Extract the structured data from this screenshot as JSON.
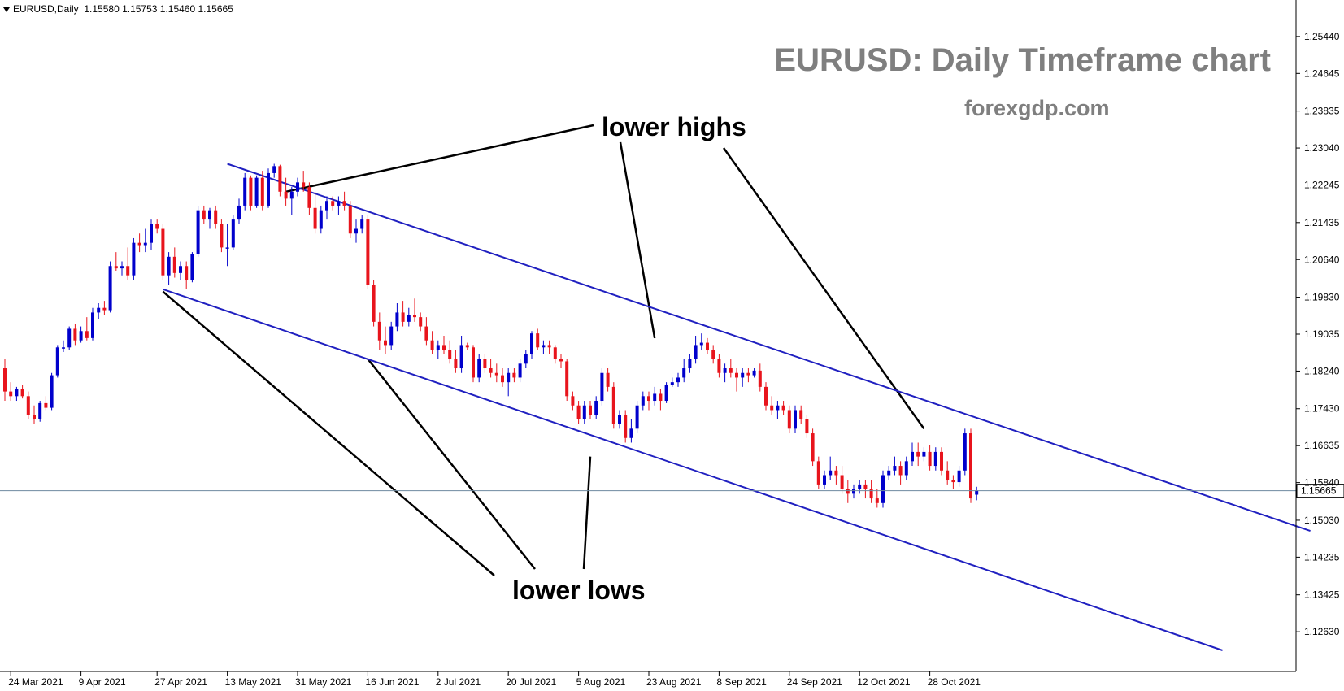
{
  "header": {
    "symbol": "EURUSD,Daily",
    "ohlc": "1.15580 1.15753 1.15460 1.15665"
  },
  "watermark": {
    "title": "EURUSD: Daily Timeframe chart",
    "site": "forexgdp.com"
  },
  "annotations": {
    "upper": "lower highs",
    "lower": "lower lows"
  },
  "colors": {
    "bull": "#0000cc",
    "bear": "#e8141c",
    "channel": "#2020c0",
    "price_line": "#6e8aa0",
    "annotation_line": "#000000"
  },
  "chart_data": {
    "type": "candlestick",
    "symbol": "EURUSD",
    "timeframe": "Daily",
    "current_price": "1.15665",
    "ylim": [
      1.1223,
      1.2584
    ],
    "y_ticks": [
      "1.25440",
      "1.24645",
      "1.23835",
      "1.23040",
      "1.22245",
      "1.21435",
      "1.20640",
      "1.19830",
      "1.19035",
      "1.18240",
      "1.17430",
      "1.16635",
      "1.15840",
      "1.15030",
      "1.14235",
      "1.13425",
      "1.12630"
    ],
    "x_ticks": [
      {
        "label": "24 Mar 2021",
        "bar": 1
      },
      {
        "label": "9 Apr 2021",
        "bar": 13
      },
      {
        "label": "27 Apr 2021",
        "bar": 26
      },
      {
        "label": "13 May 2021",
        "bar": 38
      },
      {
        "label": "31 May 2021",
        "bar": 50
      },
      {
        "label": "16 Jun 2021",
        "bar": 62
      },
      {
        "label": "2 Jul 2021",
        "bar": 74
      },
      {
        "label": "20 Jul 2021",
        "bar": 86
      },
      {
        "label": "5 Aug 2021",
        "bar": 98
      },
      {
        "label": "23 Aug 2021",
        "bar": 110
      },
      {
        "label": "8 Sep 2021",
        "bar": 122
      },
      {
        "label": "24 Sep 2021",
        "bar": 134
      },
      {
        "label": "12 Oct 2021",
        "bar": 146
      },
      {
        "label": "28 Oct 2021",
        "bar": 158
      }
    ],
    "candles": [
      [
        1.183,
        1.185,
        1.176,
        1.178
      ],
      [
        1.178,
        1.18,
        1.176,
        1.177
      ],
      [
        1.177,
        1.179,
        1.176,
        1.1785
      ],
      [
        1.1785,
        1.1795,
        1.1765,
        1.177
      ],
      [
        1.177,
        1.178,
        1.172,
        1.173
      ],
      [
        1.173,
        1.175,
        1.171,
        1.172
      ],
      [
        1.172,
        1.176,
        1.1715,
        1.1755
      ],
      [
        1.1755,
        1.177,
        1.174,
        1.1745
      ],
      [
        1.1745,
        1.182,
        1.174,
        1.1815
      ],
      [
        1.1815,
        1.188,
        1.181,
        1.1875
      ],
      [
        1.1875,
        1.189,
        1.1865,
        1.1875
      ],
      [
        1.1875,
        1.192,
        1.187,
        1.1915
      ],
      [
        1.1915,
        1.1925,
        1.188,
        1.189
      ],
      [
        1.189,
        1.192,
        1.1885,
        1.191
      ],
      [
        1.191,
        1.194,
        1.189,
        1.1895
      ],
      [
        1.1895,
        1.196,
        1.189,
        1.195
      ],
      [
        1.195,
        1.197,
        1.1935,
        1.196
      ],
      [
        1.196,
        1.1975,
        1.1945,
        1.1955
      ],
      [
        1.1955,
        1.206,
        1.195,
        1.205
      ],
      [
        1.205,
        1.208,
        1.204,
        1.2045
      ],
      [
        1.2045,
        1.206,
        1.203,
        1.205
      ],
      [
        1.205,
        1.209,
        1.202,
        1.203
      ],
      [
        1.203,
        1.211,
        1.202,
        1.21
      ],
      [
        1.21,
        1.212,
        1.208,
        1.2095
      ],
      [
        1.2095,
        1.213,
        1.208,
        1.21
      ],
      [
        1.21,
        1.215,
        1.2085,
        1.214
      ],
      [
        1.214,
        1.215,
        1.212,
        1.213
      ],
      [
        1.213,
        1.214,
        1.202,
        1.203
      ],
      [
        1.203,
        1.208,
        1.201,
        1.207
      ],
      [
        1.207,
        1.209,
        1.2025,
        1.2035
      ],
      [
        1.2035,
        1.206,
        1.202,
        1.205
      ],
      [
        1.205,
        1.206,
        1.2,
        1.202
      ],
      [
        1.202,
        1.208,
        1.2015,
        1.2075
      ],
      [
        1.2075,
        1.218,
        1.207,
        1.217
      ],
      [
        1.217,
        1.218,
        1.214,
        1.215
      ],
      [
        1.215,
        1.2175,
        1.213,
        1.217
      ],
      [
        1.217,
        1.218,
        1.213,
        1.214
      ],
      [
        1.214,
        1.215,
        1.208,
        1.209
      ],
      [
        1.209,
        1.214,
        1.205,
        1.209
      ],
      [
        1.209,
        1.216,
        1.2085,
        1.215
      ],
      [
        1.215,
        1.2195,
        1.214,
        1.218
      ],
      [
        1.218,
        1.225,
        1.217,
        1.224
      ],
      [
        1.224,
        1.2245,
        1.217,
        1.218
      ],
      [
        1.218,
        1.2245,
        1.2175,
        1.224
      ],
      [
        1.224,
        1.2255,
        1.217,
        1.218
      ],
      [
        1.218,
        1.226,
        1.2175,
        1.225
      ],
      [
        1.225,
        1.227,
        1.224,
        1.2265
      ],
      [
        1.2265,
        1.2268,
        1.22,
        1.221
      ],
      [
        1.221,
        1.224,
        1.218,
        1.2195
      ],
      [
        1.2195,
        1.222,
        1.216,
        1.221
      ],
      [
        1.221,
        1.224,
        1.22,
        1.223
      ],
      [
        1.223,
        1.2255,
        1.221,
        1.222
      ],
      [
        1.222,
        1.223,
        1.216,
        1.2175
      ],
      [
        1.2175,
        1.221,
        1.212,
        1.213
      ],
      [
        1.213,
        1.218,
        1.212,
        1.217
      ],
      [
        1.217,
        1.22,
        1.215,
        1.219
      ],
      [
        1.219,
        1.22,
        1.217,
        1.218
      ],
      [
        1.218,
        1.22,
        1.216,
        1.219
      ],
      [
        1.219,
        1.221,
        1.217,
        1.218
      ],
      [
        1.218,
        1.219,
        1.211,
        1.212
      ],
      [
        1.212,
        1.215,
        1.21,
        1.213
      ],
      [
        1.213,
        1.216,
        1.212,
        1.215
      ],
      [
        1.215,
        1.216,
        1.2,
        1.201
      ],
      [
        1.201,
        1.202,
        1.192,
        1.193
      ],
      [
        1.193,
        1.195,
        1.187,
        1.189
      ],
      [
        1.189,
        1.192,
        1.186,
        1.188
      ],
      [
        1.188,
        1.193,
        1.187,
        1.192
      ],
      [
        1.192,
        1.197,
        1.191,
        1.195
      ],
      [
        1.195,
        1.1975,
        1.192,
        1.193
      ],
      [
        1.193,
        1.196,
        1.192,
        1.1945
      ],
      [
        1.1945,
        1.198,
        1.193,
        1.194
      ],
      [
        1.194,
        1.195,
        1.191,
        1.192
      ],
      [
        1.192,
        1.194,
        1.188,
        1.189
      ],
      [
        1.189,
        1.191,
        1.186,
        1.187
      ],
      [
        1.187,
        1.189,
        1.185,
        1.188
      ],
      [
        1.188,
        1.19,
        1.186,
        1.187
      ],
      [
        1.187,
        1.189,
        1.184,
        1.185
      ],
      [
        1.185,
        1.187,
        1.182,
        1.183
      ],
      [
        1.183,
        1.19,
        1.182,
        1.188
      ],
      [
        1.188,
        1.1885,
        1.187,
        1.1875
      ],
      [
        1.1875,
        1.188,
        1.18,
        1.181
      ],
      [
        1.181,
        1.186,
        1.18,
        1.185
      ],
      [
        1.185,
        1.186,
        1.182,
        1.183
      ],
      [
        1.183,
        1.185,
        1.181,
        1.182
      ],
      [
        1.182,
        1.184,
        1.18,
        1.1815
      ],
      [
        1.1815,
        1.183,
        1.179,
        1.18
      ],
      [
        1.18,
        1.183,
        1.177,
        1.182
      ],
      [
        1.182,
        1.183,
        1.18,
        1.181
      ],
      [
        1.181,
        1.185,
        1.18,
        1.184
      ],
      [
        1.184,
        1.187,
        1.183,
        1.186
      ],
      [
        1.186,
        1.191,
        1.185,
        1.1905
      ],
      [
        1.1905,
        1.1915,
        1.187,
        1.1875
      ],
      [
        1.1875,
        1.189,
        1.186,
        1.188
      ],
      [
        1.188,
        1.189,
        1.186,
        1.1875
      ],
      [
        1.1875,
        1.188,
        1.184,
        1.185
      ],
      [
        1.185,
        1.186,
        1.183,
        1.1845
      ],
      [
        1.1845,
        1.185,
        1.176,
        1.177
      ],
      [
        1.177,
        1.178,
        1.174,
        1.175
      ],
      [
        1.175,
        1.176,
        1.171,
        1.172
      ],
      [
        1.172,
        1.176,
        1.171,
        1.175
      ],
      [
        1.175,
        1.176,
        1.172,
        1.173
      ],
      [
        1.173,
        1.177,
        1.172,
        1.176
      ],
      [
        1.176,
        1.183,
        1.175,
        1.182
      ],
      [
        1.182,
        1.183,
        1.178,
        1.179
      ],
      [
        1.179,
        1.18,
        1.17,
        1.171
      ],
      [
        1.171,
        1.174,
        1.17,
        1.173
      ],
      [
        1.173,
        1.174,
        1.167,
        1.168
      ],
      [
        1.168,
        1.172,
        1.167,
        1.17
      ],
      [
        1.17,
        1.176,
        1.169,
        1.175
      ],
      [
        1.175,
        1.178,
        1.174,
        1.177
      ],
      [
        1.177,
        1.178,
        1.174,
        1.176
      ],
      [
        1.176,
        1.179,
        1.175,
        1.1775
      ],
      [
        1.1775,
        1.1785,
        1.174,
        1.176
      ],
      [
        1.176,
        1.18,
        1.1755,
        1.1795
      ],
      [
        1.1795,
        1.181,
        1.179,
        1.18
      ],
      [
        1.18,
        1.182,
        1.179,
        1.181
      ],
      [
        1.181,
        1.185,
        1.18,
        1.183
      ],
      [
        1.183,
        1.186,
        1.182,
        1.185
      ],
      [
        1.185,
        1.19,
        1.184,
        1.188
      ],
      [
        1.188,
        1.1905,
        1.187,
        1.1885
      ],
      [
        1.1885,
        1.1895,
        1.186,
        1.187
      ],
      [
        1.187,
        1.188,
        1.184,
        1.185
      ],
      [
        1.185,
        1.186,
        1.181,
        1.182
      ],
      [
        1.182,
        1.184,
        1.18,
        1.183
      ],
      [
        1.183,
        1.185,
        1.181,
        1.182
      ],
      [
        1.182,
        1.183,
        1.178,
        1.181
      ],
      [
        1.181,
        1.183,
        1.179,
        1.182
      ],
      [
        1.182,
        1.183,
        1.18,
        1.1815
      ],
      [
        1.1815,
        1.183,
        1.181,
        1.1825
      ],
      [
        1.1825,
        1.184,
        1.178,
        1.179
      ],
      [
        1.179,
        1.18,
        1.174,
        1.175
      ],
      [
        1.175,
        1.177,
        1.173,
        1.174
      ],
      [
        1.174,
        1.176,
        1.172,
        1.175
      ],
      [
        1.175,
        1.176,
        1.173,
        1.174
      ],
      [
        1.174,
        1.175,
        1.169,
        1.17
      ],
      [
        1.17,
        1.175,
        1.169,
        1.174
      ],
      [
        1.174,
        1.175,
        1.171,
        1.172
      ],
      [
        1.172,
        1.173,
        1.168,
        1.169
      ],
      [
        1.169,
        1.17,
        1.162,
        1.163
      ],
      [
        1.163,
        1.164,
        1.157,
        1.158
      ],
      [
        1.158,
        1.161,
        1.157,
        1.16
      ],
      [
        1.16,
        1.164,
        1.159,
        1.161
      ],
      [
        1.161,
        1.162,
        1.158,
        1.16
      ],
      [
        1.16,
        1.162,
        1.156,
        1.157
      ],
      [
        1.157,
        1.159,
        1.154,
        1.156
      ],
      [
        1.156,
        1.158,
        1.155,
        1.157
      ],
      [
        1.157,
        1.159,
        1.156,
        1.158
      ],
      [
        1.158,
        1.159,
        1.155,
        1.157
      ],
      [
        1.157,
        1.159,
        1.154,
        1.155
      ],
      [
        1.155,
        1.157,
        1.153,
        1.154
      ],
      [
        1.154,
        1.161,
        1.153,
        1.16
      ],
      [
        1.16,
        1.162,
        1.159,
        1.161
      ],
      [
        1.161,
        1.164,
        1.16,
        1.162
      ],
      [
        1.162,
        1.163,
        1.158,
        1.16
      ],
      [
        1.16,
        1.164,
        1.159,
        1.163
      ],
      [
        1.163,
        1.167,
        1.162,
        1.165
      ],
      [
        1.165,
        1.167,
        1.162,
        1.164
      ],
      [
        1.164,
        1.166,
        1.163,
        1.165
      ],
      [
        1.165,
        1.1665,
        1.161,
        1.162
      ],
      [
        1.162,
        1.166,
        1.161,
        1.165
      ],
      [
        1.165,
        1.166,
        1.16,
        1.161
      ],
      [
        1.161,
        1.163,
        1.158,
        1.159
      ],
      [
        1.159,
        1.16,
        1.157,
        1.1585
      ],
      [
        1.1585,
        1.162,
        1.1575,
        1.161
      ],
      [
        1.161,
        1.17,
        1.16,
        1.169
      ],
      [
        1.169,
        1.17,
        1.154,
        1.155
      ],
      [
        1.1558,
        1.1575,
        1.1546,
        1.1567
      ]
    ],
    "channel": {
      "upper": {
        "start": {
          "bar": 38,
          "price": 1.227
        },
        "end": {
          "bar": 223,
          "price": 1.148
        }
      },
      "lower": {
        "start": {
          "bar": 27,
          "price": 1.2
        },
        "end": {
          "bar": 208,
          "price": 1.1223
        }
      }
    },
    "annotation_pointers": {
      "lower_highs": [
        {
          "bar": 48,
          "price": 1.221
        },
        {
          "bar": 111,
          "price": 1.1895
        },
        {
          "bar": 157,
          "price": 1.17
        }
      ],
      "lower_lows": [
        {
          "bar": 27,
          "price": 1.1995
        },
        {
          "bar": 62,
          "price": 1.185
        },
        {
          "bar": 100,
          "price": 1.164
        }
      ]
    },
    "grid": false,
    "legend": "none"
  }
}
